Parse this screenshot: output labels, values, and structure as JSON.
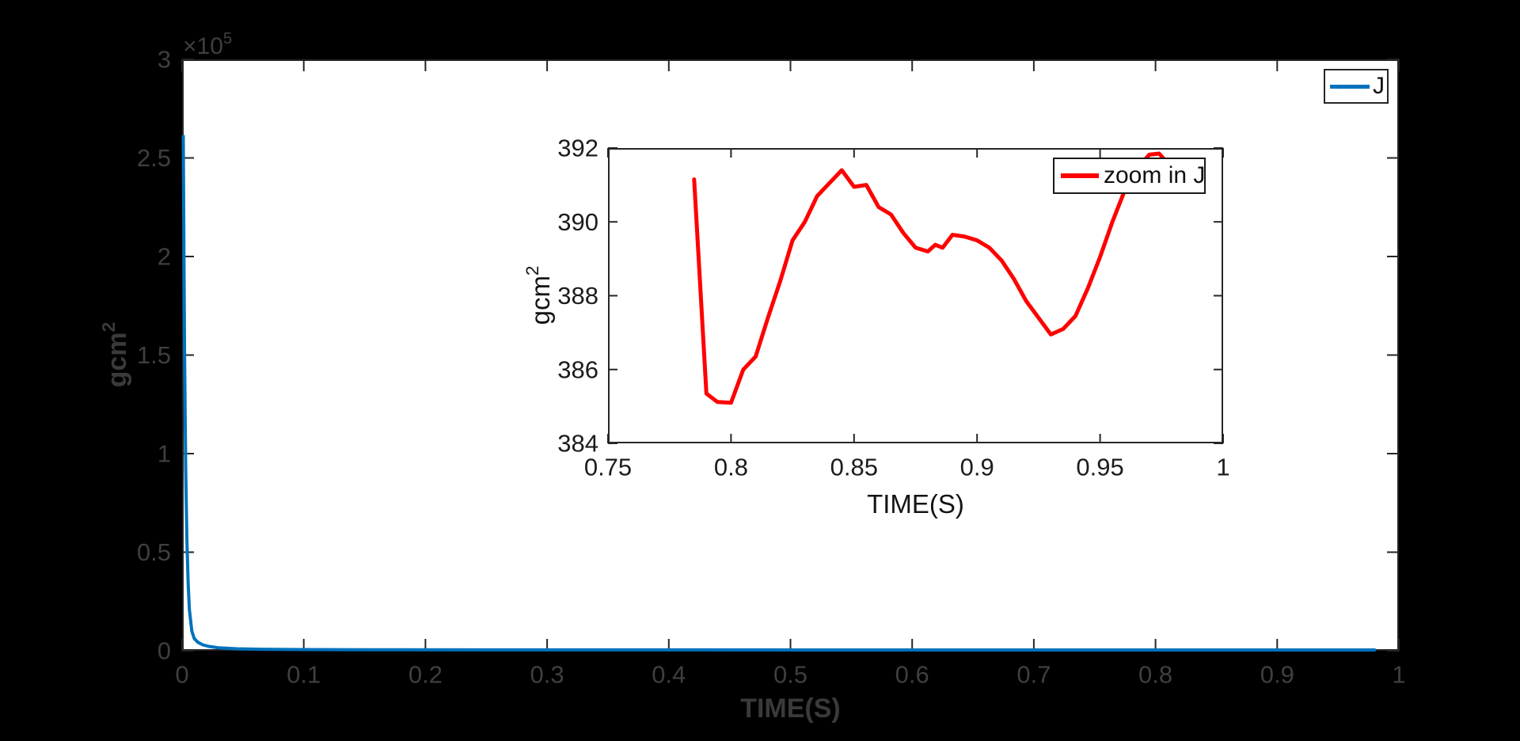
{
  "figure": {
    "background": "#000000",
    "plot_background": "#ffffff"
  },
  "chart_data": [
    {
      "id": "main",
      "type": "line",
      "title": "",
      "xlabel": "TIME(S)",
      "ylabel_base": "gcm",
      "ylabel_sup": "2",
      "y_offset_base": "×10",
      "y_offset_sup": "5",
      "xlim": [
        0,
        1
      ],
      "ylim": [
        0,
        300000
      ],
      "xticks": [
        0,
        0.1,
        0.2,
        0.3,
        0.4,
        0.5,
        0.6,
        0.7,
        0.8,
        0.9,
        1
      ],
      "xtick_labels": [
        "0",
        "0.1",
        "0.2",
        "0.3",
        "0.4",
        "0.5",
        "0.6",
        "0.7",
        "0.8",
        "0.9",
        "1"
      ],
      "yticks": [
        0,
        50000,
        100000,
        150000,
        200000,
        250000,
        300000
      ],
      "ytick_labels": [
        "0",
        "0.5",
        "1",
        "1.5",
        "2",
        "2.5",
        "3"
      ],
      "grid": false,
      "legend": {
        "label": "J",
        "position": "top-right"
      },
      "axis_color": "#262626",
      "tick_label_color": "#3f3f3f",
      "axis_label_color": "#3a3a3a",
      "series": [
        {
          "name": "J",
          "color": "#0072BD",
          "width": 4,
          "points": [
            [
              0.001,
              261000
            ],
            [
              0.0015,
              205000
            ],
            [
              0.002,
              152000
            ],
            [
              0.003,
              91000
            ],
            [
              0.004,
              56000
            ],
            [
              0.005,
              34000
            ],
            [
              0.006,
              21000
            ],
            [
              0.008,
              10000
            ],
            [
              0.01,
              6200
            ],
            [
              0.013,
              4300
            ],
            [
              0.017,
              3000
            ],
            [
              0.022,
              2200
            ],
            [
              0.03,
              1500
            ],
            [
              0.045,
              1000
            ],
            [
              0.065,
              750
            ],
            [
              0.1,
              600
            ],
            [
              0.15,
              520
            ],
            [
              0.25,
              460
            ],
            [
              0.4,
              425
            ],
            [
              0.6,
              400
            ],
            [
              0.785,
              391
            ],
            [
              0.8,
              385
            ],
            [
              0.85,
              391
            ],
            [
              0.9,
              389.5
            ],
            [
              0.93,
              387
            ],
            [
              0.98,
              391
            ]
          ]
        }
      ]
    },
    {
      "id": "inset",
      "type": "line",
      "title": "",
      "xlabel": "TIME(S)",
      "ylabel_base": "gcm",
      "ylabel_sup": "2",
      "xlim": [
        0.75,
        1
      ],
      "ylim": [
        384,
        392
      ],
      "xticks": [
        0.75,
        0.8,
        0.85,
        0.9,
        0.95,
        1
      ],
      "xtick_labels": [
        "0.75",
        "0.8",
        "0.85",
        "0.9",
        "0.95",
        "1"
      ],
      "yticks": [
        384,
        386,
        388,
        390,
        392
      ],
      "ytick_labels": [
        "384",
        "386",
        "388",
        "390",
        "392"
      ],
      "grid": false,
      "legend": {
        "label": "zoom in J",
        "position": "top-right"
      },
      "axis_color": "#262626",
      "tick_label_color": "#1c1c1c",
      "axis_label_color": "#141414",
      "series": [
        {
          "name": "zoom in J",
          "color": "#ff0000",
          "width": 5,
          "points": [
            [
              0.785,
              391.15
            ],
            [
              0.79,
              385.35
            ],
            [
              0.7945,
              385.12
            ],
            [
              0.8,
              385.1
            ],
            [
              0.805,
              386.0
            ],
            [
              0.81,
              386.35
            ],
            [
              0.815,
              387.4
            ],
            [
              0.82,
              388.4
            ],
            [
              0.825,
              389.5
            ],
            [
              0.83,
              390.0
            ],
            [
              0.835,
              390.7
            ],
            [
              0.84,
              391.05
            ],
            [
              0.845,
              391.4
            ],
            [
              0.85,
              390.95
            ],
            [
              0.855,
              391.0
            ],
            [
              0.86,
              390.4
            ],
            [
              0.865,
              390.2
            ],
            [
              0.87,
              389.7
            ],
            [
              0.875,
              389.3
            ],
            [
              0.88,
              389.2
            ],
            [
              0.883,
              389.38
            ],
            [
              0.886,
              389.3
            ],
            [
              0.89,
              389.65
            ],
            [
              0.895,
              389.6
            ],
            [
              0.9,
              389.5
            ],
            [
              0.905,
              389.3
            ],
            [
              0.91,
              388.95
            ],
            [
              0.915,
              388.45
            ],
            [
              0.92,
              387.85
            ],
            [
              0.925,
              387.4
            ],
            [
              0.93,
              386.95
            ],
            [
              0.935,
              387.1
            ],
            [
              0.94,
              387.45
            ],
            [
              0.945,
              388.2
            ],
            [
              0.95,
              389.05
            ],
            [
              0.955,
              390.0
            ],
            [
              0.96,
              390.85
            ],
            [
              0.965,
              391.45
            ],
            [
              0.97,
              391.82
            ],
            [
              0.974,
              391.85
            ],
            [
              0.978,
              391.55
            ],
            [
              0.98,
              391.3
            ]
          ]
        }
      ]
    }
  ]
}
